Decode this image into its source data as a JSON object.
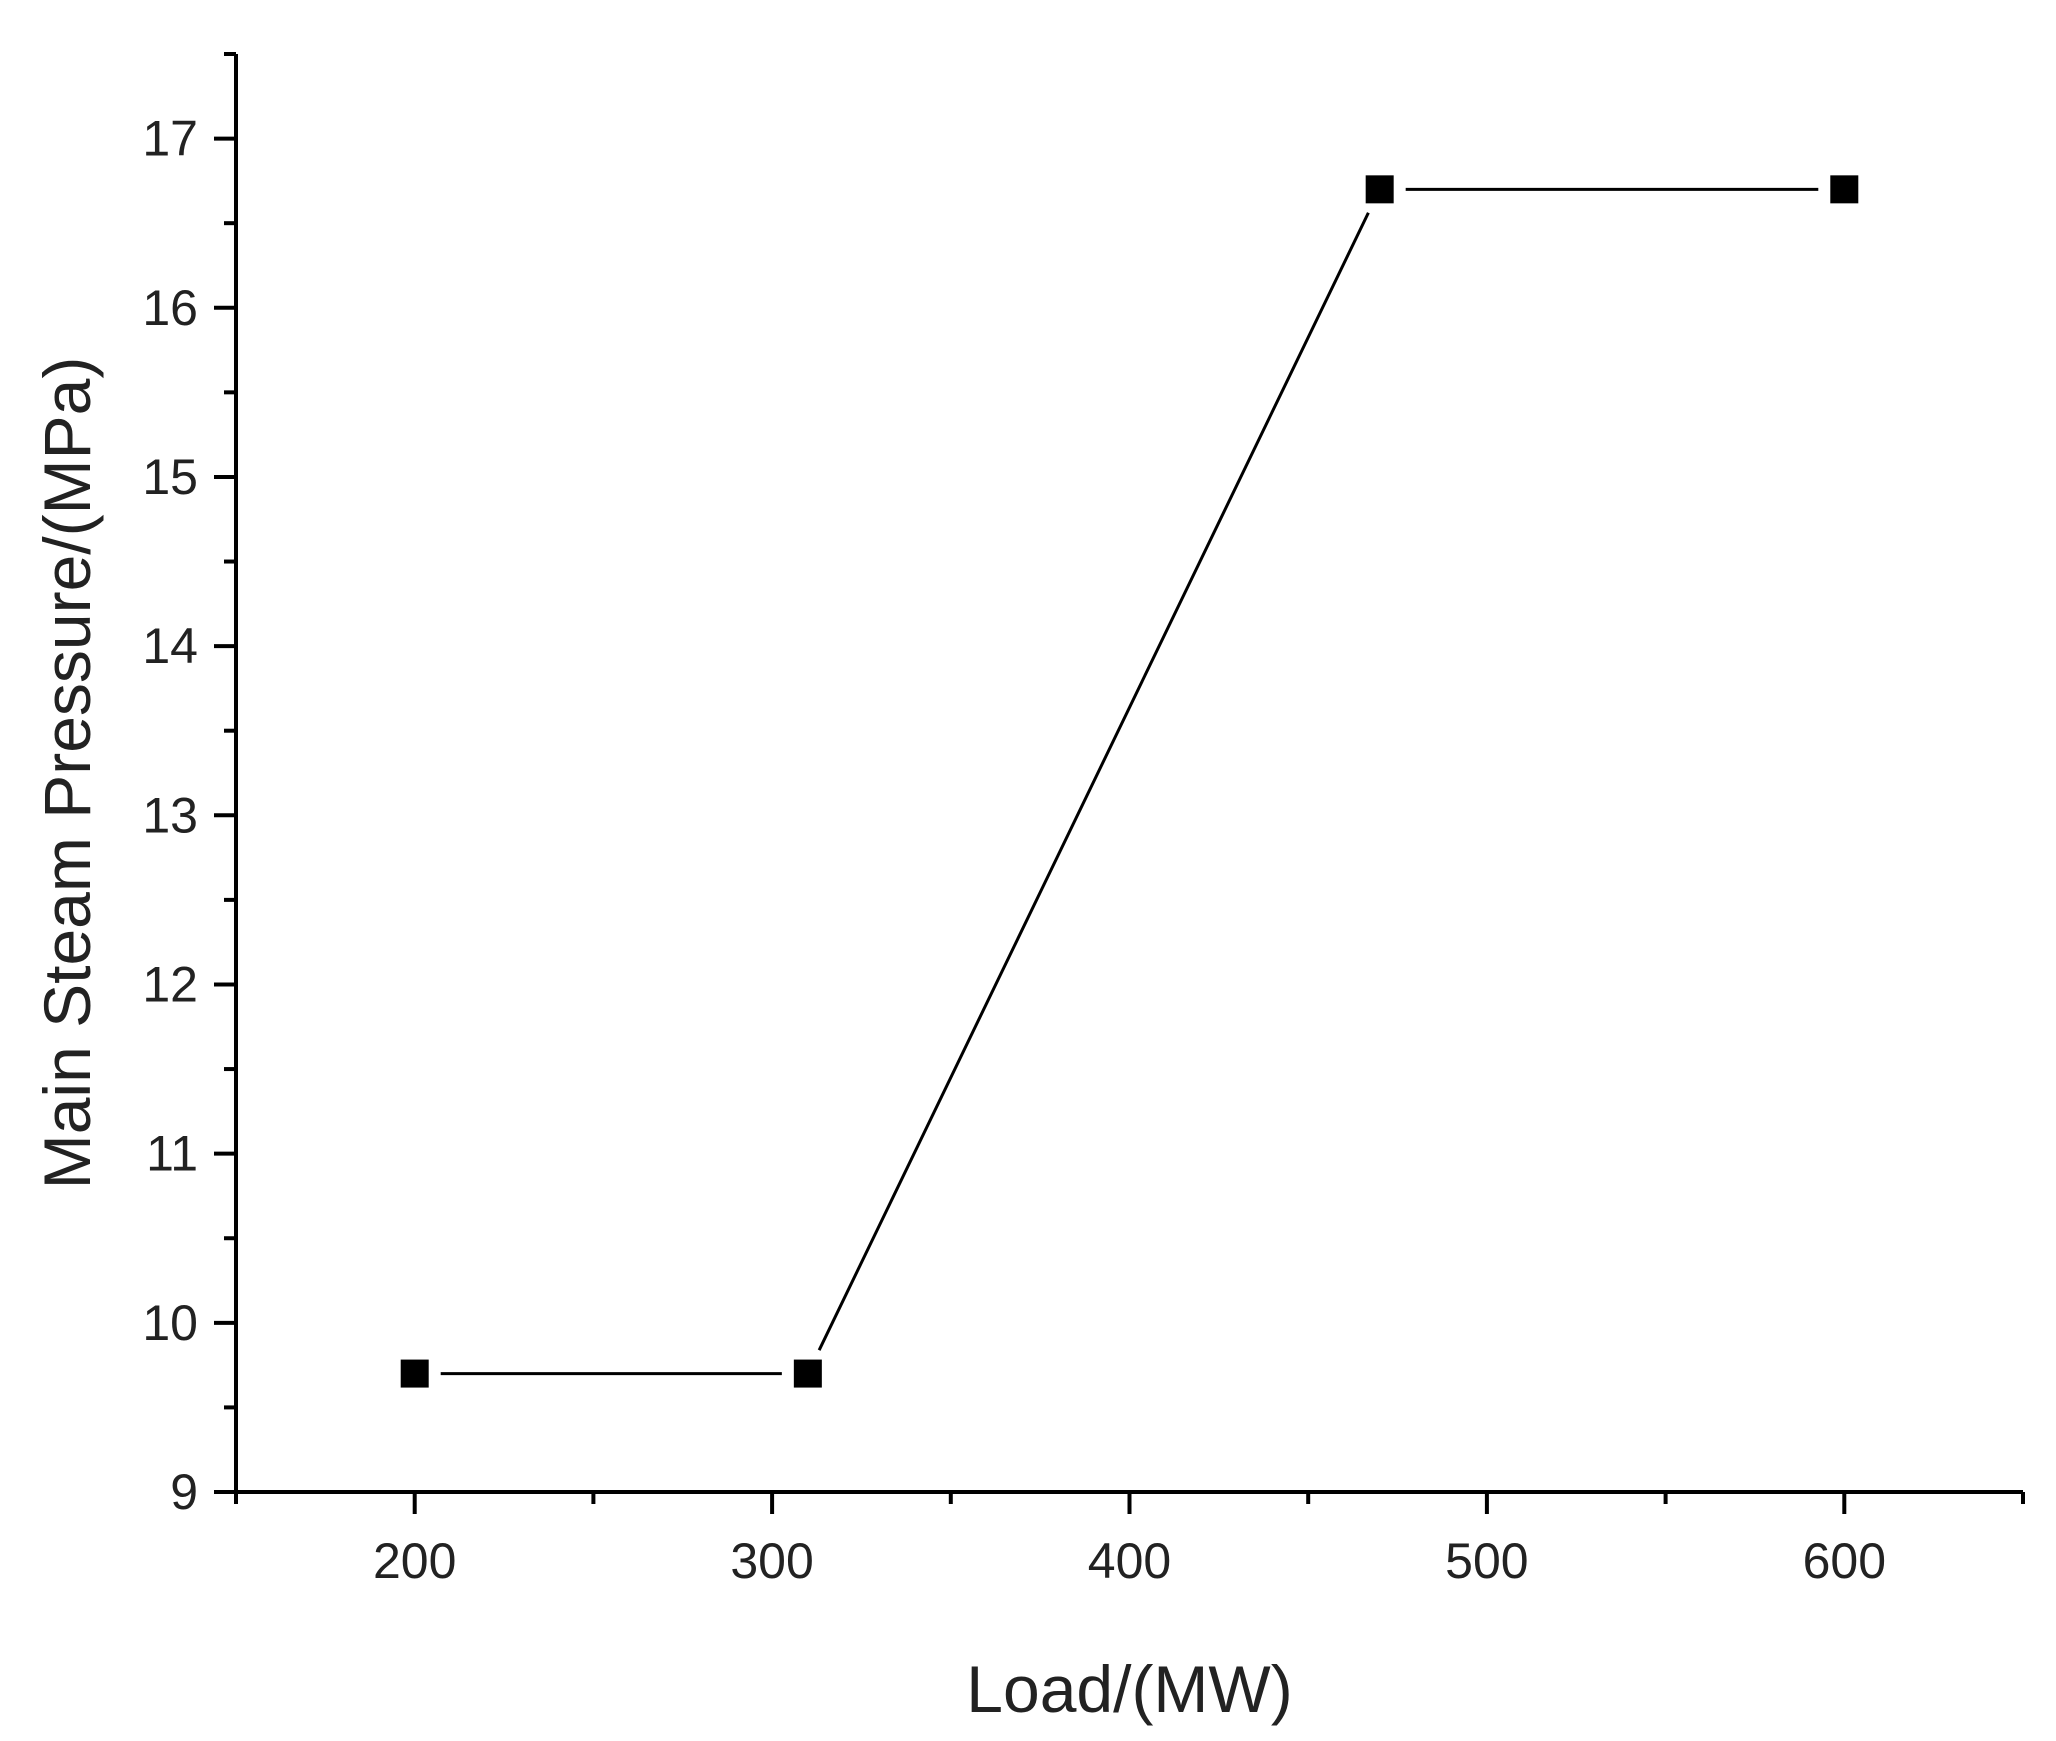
{
  "chart_data": {
    "type": "line",
    "title": "",
    "xlabel": "Load/(MW)",
    "ylabel": "Main Steam Pressure/(MPa)",
    "xlim": [
      150,
      650
    ],
    "ylim": [
      9,
      17.5
    ],
    "x_ticks": [
      200,
      300,
      400,
      500,
      600
    ],
    "x_tick_labels": [
      "200",
      "300",
      "400",
      "500",
      "600"
    ],
    "y_ticks": [
      9,
      10,
      11,
      12,
      13,
      14,
      15,
      16,
      17
    ],
    "y_tick_labels": [
      "9",
      "10",
      "11",
      "12",
      "13",
      "14",
      "15",
      "16",
      "17"
    ],
    "grid": false,
    "legend": "none",
    "marker": "square",
    "color": "#000000",
    "series": [
      {
        "x": [
          200,
          310,
          470,
          600
        ],
        "y": [
          9.7,
          9.7,
          16.7,
          16.7
        ]
      }
    ]
  }
}
